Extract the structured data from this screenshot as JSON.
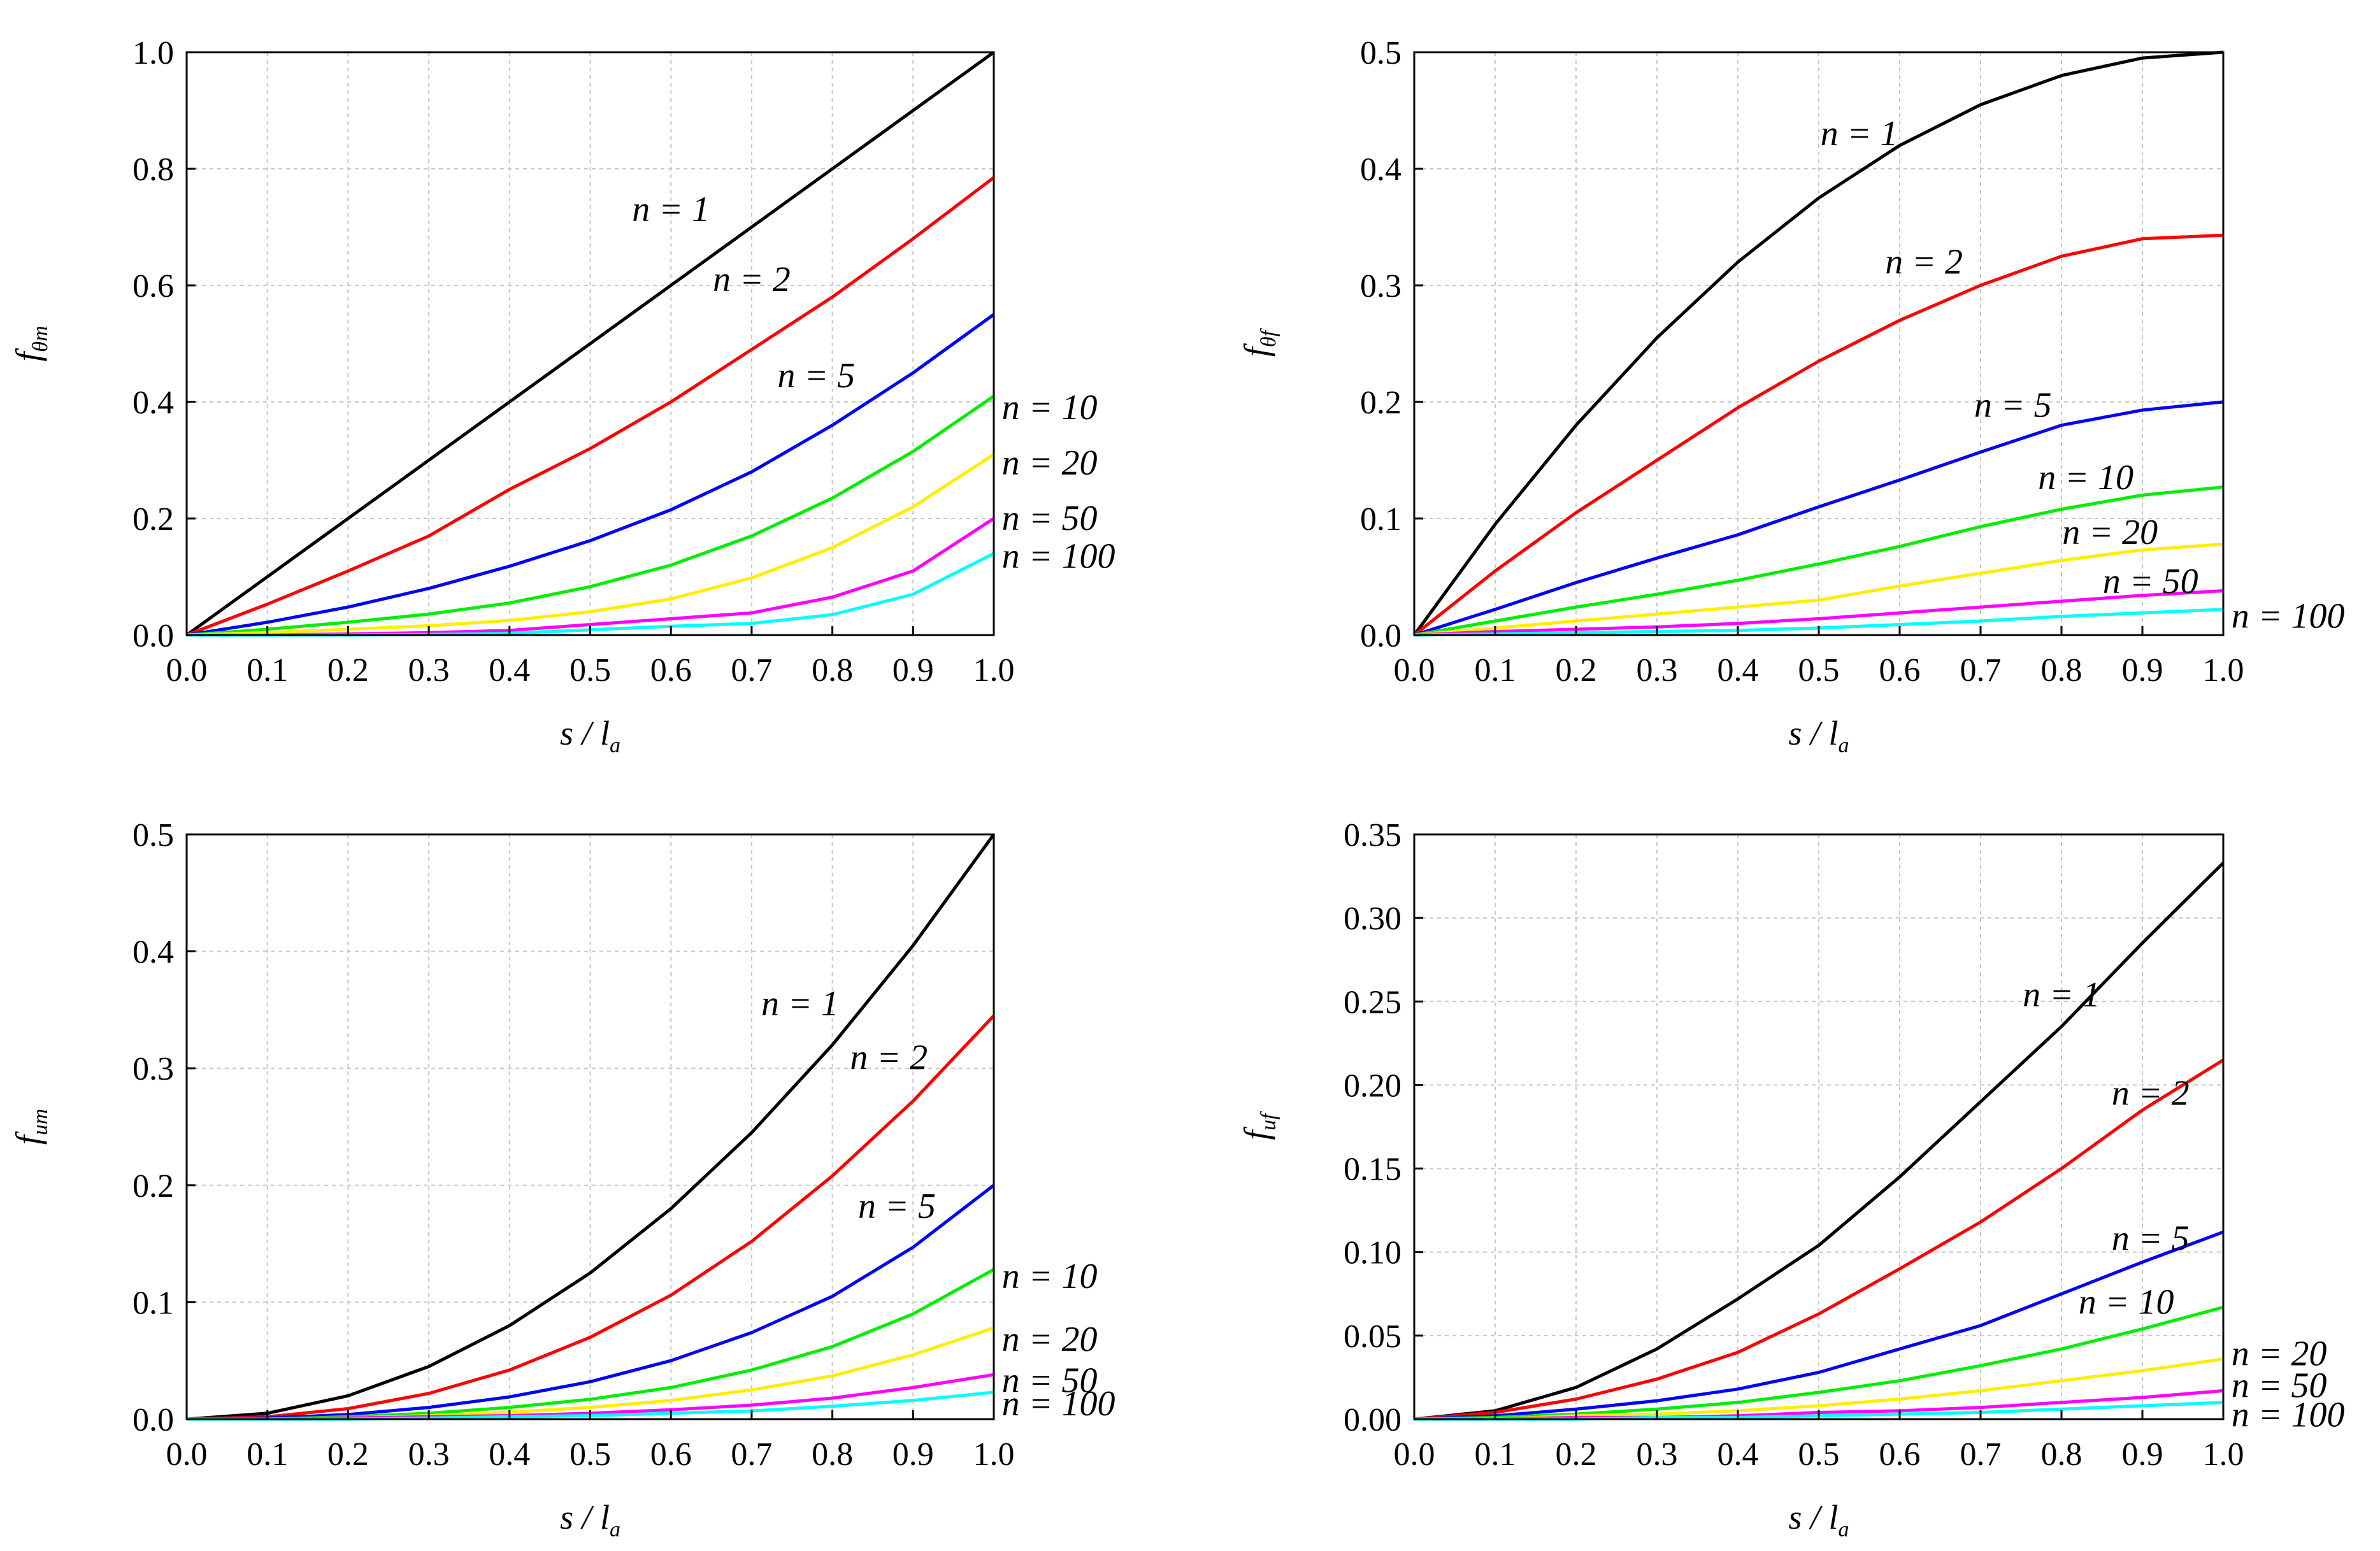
{
  "figure": {
    "title": ""
  },
  "chart_data": [
    {
      "id": "ftm",
      "type": "line",
      "title": "",
      "ylabel": "f",
      "ylabel_sub": "θm",
      "xlabel": "s / l",
      "xlabel_sub": "a",
      "xlim": [
        0,
        1
      ],
      "ylim": [
        0,
        1
      ],
      "grid": true,
      "xticks": [
        0.0,
        0.1,
        0.2,
        0.3,
        0.4,
        0.5,
        0.6,
        0.7,
        0.8,
        0.9,
        1.0
      ],
      "xtick_labels": [
        "0.0",
        "0.1",
        "0.2",
        "0.3",
        "0.4",
        "0.5",
        "0.6",
        "0.7",
        "0.8",
        "0.9",
        "1.0"
      ],
      "yticks": [
        0.0,
        0.2,
        0.4,
        0.6,
        0.8,
        1.0
      ],
      "ytick_labels": [
        "0.0",
        "0.2",
        "0.4",
        "0.6",
        "0.8",
        "1.0"
      ],
      "x": [
        0,
        0.1,
        0.2,
        0.3,
        0.4,
        0.5,
        0.6,
        0.7,
        0.8,
        0.9,
        1.0
      ],
      "series": [
        {
          "name": "n = 1",
          "color": "#000000",
          "values": [
            0,
            0.1,
            0.2,
            0.3,
            0.4,
            0.5,
            0.6,
            0.7,
            0.8,
            0.9,
            1.0
          ]
        },
        {
          "name": "n = 2",
          "color": "#ff0000",
          "values": [
            0,
            0.053,
            0.11,
            0.17,
            0.25,
            0.32,
            0.4,
            0.49,
            0.58,
            0.68,
            0.785
          ]
        },
        {
          "name": "n = 5",
          "color": "#0000ff",
          "values": [
            0,
            0.022,
            0.048,
            0.08,
            0.118,
            0.162,
            0.215,
            0.28,
            0.36,
            0.45,
            0.55
          ]
        },
        {
          "name": "n = 10",
          "color": "#00ee00",
          "values": [
            0,
            0.01,
            0.022,
            0.036,
            0.055,
            0.083,
            0.12,
            0.17,
            0.235,
            0.315,
            0.41
          ]
        },
        {
          "name": "n = 20",
          "color": "#ffee00",
          "values": [
            0,
            0.004,
            0.01,
            0.016,
            0.025,
            0.04,
            0.062,
            0.098,
            0.15,
            0.22,
            0.31
          ]
        },
        {
          "name": "n = 50",
          "color": "#ff00ff",
          "values": [
            0,
            0.0,
            0.002,
            0.004,
            0.008,
            0.018,
            0.028,
            0.038,
            0.065,
            0.11,
            0.2
          ]
        },
        {
          "name": "n = 100",
          "color": "#00ffff",
          "values": [
            0,
            0.0,
            0.0,
            0.001,
            0.003,
            0.009,
            0.015,
            0.02,
            0.035,
            0.07,
            0.14
          ]
        }
      ]
    },
    {
      "id": "ftf",
      "type": "line",
      "title": "",
      "ylabel": "f",
      "ylabel_sub": "θf",
      "xlabel": "s / l",
      "xlabel_sub": "a",
      "xlim": [
        0,
        1
      ],
      "ylim": [
        0,
        0.5
      ],
      "grid": true,
      "xticks": [
        0.0,
        0.1,
        0.2,
        0.3,
        0.4,
        0.5,
        0.6,
        0.7,
        0.8,
        0.9,
        1.0
      ],
      "xtick_labels": [
        "0.0",
        "0.1",
        "0.2",
        "0.3",
        "0.4",
        "0.5",
        "0.6",
        "0.7",
        "0.8",
        "0.9",
        "1.0"
      ],
      "yticks": [
        0.0,
        0.1,
        0.2,
        0.3,
        0.4,
        0.5
      ],
      "ytick_labels": [
        "0.0",
        "0.1",
        "0.2",
        "0.3",
        "0.4",
        "0.5"
      ],
      "x": [
        0,
        0.1,
        0.2,
        0.3,
        0.4,
        0.5,
        0.6,
        0.7,
        0.8,
        0.9,
        1.0
      ],
      "series": [
        {
          "name": "n = 1",
          "color": "#000000",
          "values": [
            0,
            0.095,
            0.18,
            0.255,
            0.32,
            0.375,
            0.42,
            0.455,
            0.48,
            0.495,
            0.5
          ]
        },
        {
          "name": "n = 2",
          "color": "#ff0000",
          "values": [
            0,
            0.055,
            0.105,
            0.15,
            0.195,
            0.235,
            0.27,
            0.3,
            0.325,
            0.34,
            0.343
          ]
        },
        {
          "name": "n = 5",
          "color": "#0000ff",
          "values": [
            0,
            0.022,
            0.045,
            0.066,
            0.086,
            0.11,
            0.133,
            0.157,
            0.18,
            0.193,
            0.2
          ]
        },
        {
          "name": "n = 10",
          "color": "#00ee00",
          "values": [
            0,
            0.012,
            0.024,
            0.035,
            0.047,
            0.061,
            0.076,
            0.093,
            0.108,
            0.12,
            0.127
          ]
        },
        {
          "name": "n = 20",
          "color": "#ffee00",
          "values": [
            0,
            0.006,
            0.012,
            0.018,
            0.024,
            0.03,
            0.042,
            0.053,
            0.064,
            0.073,
            0.078
          ]
        },
        {
          "name": "n = 50",
          "color": "#ff00ff",
          "values": [
            0,
            0.003,
            0.005,
            0.007,
            0.01,
            0.014,
            0.019,
            0.024,
            0.029,
            0.034,
            0.038
          ]
        },
        {
          "name": "n = 100",
          "color": "#00ffff",
          "values": [
            0,
            0.001,
            0.002,
            0.003,
            0.004,
            0.006,
            0.009,
            0.012,
            0.016,
            0.019,
            0.022
          ]
        }
      ]
    },
    {
      "id": "fum",
      "type": "line",
      "title": "",
      "ylabel": "f",
      "ylabel_sub": "um",
      "xlabel": "s / l",
      "xlabel_sub": "a",
      "xlim": [
        0,
        1
      ],
      "ylim": [
        0,
        0.5
      ],
      "grid": true,
      "xticks": [
        0.0,
        0.1,
        0.2,
        0.3,
        0.4,
        0.5,
        0.6,
        0.7,
        0.8,
        0.9,
        1.0
      ],
      "xtick_labels": [
        "0.0",
        "0.1",
        "0.2",
        "0.3",
        "0.4",
        "0.5",
        "0.6",
        "0.7",
        "0.8",
        "0.9",
        "1.0"
      ],
      "yticks": [
        0.0,
        0.1,
        0.2,
        0.3,
        0.4,
        0.5
      ],
      "ytick_labels": [
        "0.0",
        "0.1",
        "0.2",
        "0.3",
        "0.4",
        "0.5"
      ],
      "x": [
        0,
        0.1,
        0.2,
        0.3,
        0.4,
        0.5,
        0.6,
        0.7,
        0.8,
        0.9,
        1.0
      ],
      "series": [
        {
          "name": "n = 1",
          "color": "#000000",
          "values": [
            0,
            0.005,
            0.02,
            0.045,
            0.08,
            0.125,
            0.18,
            0.245,
            0.32,
            0.405,
            0.5
          ]
        },
        {
          "name": "n = 2",
          "color": "#ff0000",
          "values": [
            0,
            0.002,
            0.009,
            0.022,
            0.042,
            0.07,
            0.106,
            0.152,
            0.208,
            0.272,
            0.345
          ]
        },
        {
          "name": "n = 5",
          "color": "#0000ff",
          "values": [
            0,
            0.001,
            0.004,
            0.01,
            0.019,
            0.032,
            0.05,
            0.074,
            0.105,
            0.147,
            0.2
          ]
        },
        {
          "name": "n = 10",
          "color": "#00ee00",
          "values": [
            0,
            0.0,
            0.002,
            0.005,
            0.01,
            0.017,
            0.027,
            0.042,
            0.062,
            0.09,
            0.128
          ]
        },
        {
          "name": "n = 20",
          "color": "#ffee00",
          "values": [
            0,
            0.0,
            0.001,
            0.003,
            0.006,
            0.01,
            0.016,
            0.025,
            0.037,
            0.055,
            0.078
          ]
        },
        {
          "name": "n = 50",
          "color": "#ff00ff",
          "values": [
            0,
            0.0,
            0.001,
            0.002,
            0.003,
            0.005,
            0.008,
            0.012,
            0.018,
            0.027,
            0.038
          ]
        },
        {
          "name": "n = 100",
          "color": "#00ffff",
          "values": [
            0,
            0.0,
            0.0,
            0.001,
            0.002,
            0.003,
            0.005,
            0.007,
            0.011,
            0.016,
            0.023
          ]
        }
      ]
    },
    {
      "id": "fuf",
      "type": "line",
      "title": "",
      "ylabel": "f",
      "ylabel_sub": "uf",
      "xlabel": "s / l",
      "xlabel_sub": "a",
      "xlim": [
        0,
        1
      ],
      "ylim": [
        0,
        0.35
      ],
      "grid": true,
      "xticks": [
        0.0,
        0.1,
        0.2,
        0.3,
        0.4,
        0.5,
        0.6,
        0.7,
        0.8,
        0.9,
        1.0
      ],
      "xtick_labels": [
        "0.0",
        "0.1",
        "0.2",
        "0.3",
        "0.4",
        "0.5",
        "0.6",
        "0.7",
        "0.8",
        "0.9",
        "1.0"
      ],
      "yticks": [
        0.0,
        0.05,
        0.1,
        0.15,
        0.2,
        0.25,
        0.3,
        0.35
      ],
      "ytick_labels": [
        "0.00",
        "0.05",
        "0.10",
        "0.15",
        "0.20",
        "0.25",
        "0.30",
        "0.35"
      ],
      "x": [
        0,
        0.1,
        0.2,
        0.3,
        0.4,
        0.5,
        0.6,
        0.7,
        0.8,
        0.9,
        1.0
      ],
      "series": [
        {
          "name": "n = 1",
          "color": "#000000",
          "values": [
            0,
            0.005,
            0.019,
            0.042,
            0.072,
            0.104,
            0.145,
            0.19,
            0.235,
            0.285,
            0.333
          ]
        },
        {
          "name": "n = 2",
          "color": "#ff0000",
          "values": [
            0,
            0.004,
            0.012,
            0.024,
            0.04,
            0.063,
            0.09,
            0.118,
            0.15,
            0.185,
            0.215
          ]
        },
        {
          "name": "n = 5",
          "color": "#0000ff",
          "values": [
            0,
            0.002,
            0.006,
            0.011,
            0.018,
            0.028,
            0.042,
            0.056,
            0.075,
            0.094,
            0.112
          ]
        },
        {
          "name": "n = 10",
          "color": "#00ee00",
          "values": [
            0,
            0.001,
            0.003,
            0.006,
            0.01,
            0.016,
            0.023,
            0.032,
            0.042,
            0.054,
            0.067
          ]
        },
        {
          "name": "n = 20",
          "color": "#ffee00",
          "values": [
            0,
            0.0,
            0.002,
            0.003,
            0.005,
            0.008,
            0.012,
            0.017,
            0.023,
            0.029,
            0.036
          ]
        },
        {
          "name": "n = 50",
          "color": "#ff00ff",
          "values": [
            0,
            0.0,
            0.001,
            0.001,
            0.002,
            0.004,
            0.005,
            0.007,
            0.01,
            0.013,
            0.017
          ]
        },
        {
          "name": "n = 100",
          "color": "#00ffff",
          "values": [
            0,
            0.0,
            0.0,
            0.001,
            0.001,
            0.002,
            0.003,
            0.004,
            0.006,
            0.008,
            0.01
          ]
        }
      ]
    }
  ]
}
